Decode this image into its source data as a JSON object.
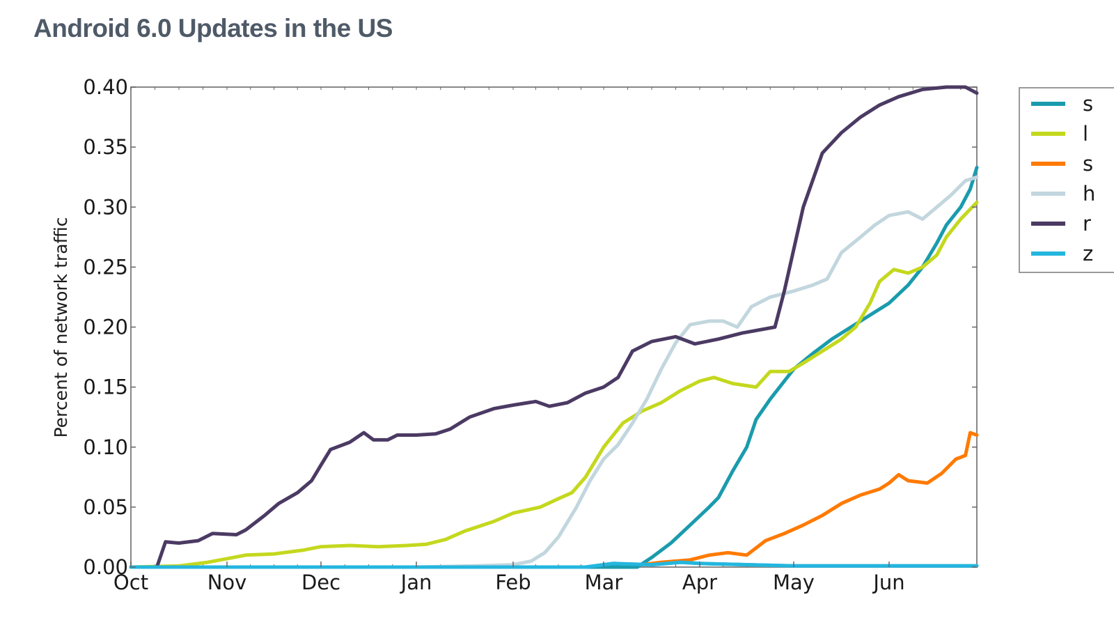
{
  "chart_data": {
    "type": "line",
    "title": "Android 6.0 Updates in the US",
    "xlabel": "",
    "ylabel": "Percent of network traffic",
    "ylim": [
      0.0,
      0.4
    ],
    "xlim_months": [
      0,
      8.92
    ],
    "yticks": [
      "0.00",
      "0.05",
      "0.10",
      "0.15",
      "0.20",
      "0.25",
      "0.30",
      "0.35",
      "0.40"
    ],
    "ytick_values": [
      0.0,
      0.05,
      0.1,
      0.15,
      0.2,
      0.25,
      0.3,
      0.35,
      0.4
    ],
    "xticks": [
      "Oct",
      "Nov",
      "Dec",
      "Jan",
      "Feb",
      "Mar",
      "Apr",
      "May",
      "Jun"
    ],
    "xtick_values": [
      0,
      1,
      2,
      3,
      4,
      5,
      6,
      7,
      8
    ],
    "x_unit": "months since Oct 1",
    "grid": false,
    "legend_position": "right-outside (clipped)",
    "series": [
      {
        "name": "s",
        "color": "#1a9bad",
        "points": [
          [
            0,
            0
          ],
          [
            5.0,
            0
          ],
          [
            5.35,
            0.0
          ],
          [
            5.5,
            0.008
          ],
          [
            5.7,
            0.02
          ],
          [
            5.9,
            0.035
          ],
          [
            6.1,
            0.05
          ],
          [
            6.2,
            0.058
          ],
          [
            6.35,
            0.08
          ],
          [
            6.5,
            0.1
          ],
          [
            6.6,
            0.123
          ],
          [
            6.75,
            0.14
          ],
          [
            6.9,
            0.155
          ],
          [
            7.0,
            0.165
          ],
          [
            7.2,
            0.178
          ],
          [
            7.4,
            0.19
          ],
          [
            7.6,
            0.2
          ],
          [
            7.8,
            0.21
          ],
          [
            8.0,
            0.22
          ],
          [
            8.2,
            0.235
          ],
          [
            8.35,
            0.25
          ],
          [
            8.5,
            0.27
          ],
          [
            8.6,
            0.285
          ],
          [
            8.75,
            0.3
          ],
          [
            8.85,
            0.315
          ],
          [
            8.92,
            0.333
          ]
        ]
      },
      {
        "name": "l",
        "color": "#c4d81e",
        "points": [
          [
            0,
            0
          ],
          [
            0.5,
            0.001
          ],
          [
            0.8,
            0.004
          ],
          [
            1.0,
            0.007
          ],
          [
            1.2,
            0.01
          ],
          [
            1.5,
            0.011
          ],
          [
            1.8,
            0.014
          ],
          [
            2.0,
            0.017
          ],
          [
            2.3,
            0.018
          ],
          [
            2.6,
            0.017
          ],
          [
            2.9,
            0.018
          ],
          [
            3.1,
            0.019
          ],
          [
            3.3,
            0.023
          ],
          [
            3.5,
            0.03
          ],
          [
            3.8,
            0.038
          ],
          [
            4.0,
            0.045
          ],
          [
            4.3,
            0.05
          ],
          [
            4.5,
            0.057
          ],
          [
            4.65,
            0.062
          ],
          [
            4.8,
            0.075
          ],
          [
            5.0,
            0.1
          ],
          [
            5.2,
            0.12
          ],
          [
            5.4,
            0.13
          ],
          [
            5.6,
            0.137
          ],
          [
            5.8,
            0.147
          ],
          [
            6.0,
            0.155
          ],
          [
            6.15,
            0.158
          ],
          [
            6.35,
            0.153
          ],
          [
            6.6,
            0.15
          ],
          [
            6.75,
            0.163
          ],
          [
            6.95,
            0.163
          ],
          [
            7.1,
            0.17
          ],
          [
            7.3,
            0.18
          ],
          [
            7.5,
            0.19
          ],
          [
            7.65,
            0.2
          ],
          [
            7.8,
            0.22
          ],
          [
            7.9,
            0.238
          ],
          [
            8.05,
            0.248
          ],
          [
            8.2,
            0.245
          ],
          [
            8.35,
            0.25
          ],
          [
            8.5,
            0.26
          ],
          [
            8.6,
            0.275
          ],
          [
            8.75,
            0.29
          ],
          [
            8.92,
            0.304
          ]
        ]
      },
      {
        "name": "s",
        "color": "#ff7a00",
        "points": [
          [
            5.4,
            0.002
          ],
          [
            5.6,
            0.004
          ],
          [
            5.9,
            0.006
          ],
          [
            6.1,
            0.01
          ],
          [
            6.3,
            0.012
          ],
          [
            6.5,
            0.01
          ],
          [
            6.7,
            0.022
          ],
          [
            6.9,
            0.028
          ],
          [
            7.1,
            0.035
          ],
          [
            7.3,
            0.043
          ],
          [
            7.5,
            0.053
          ],
          [
            7.7,
            0.06
          ],
          [
            7.9,
            0.065
          ],
          [
            8.0,
            0.07
          ],
          [
            8.1,
            0.077
          ],
          [
            8.2,
            0.072
          ],
          [
            8.4,
            0.07
          ],
          [
            8.55,
            0.078
          ],
          [
            8.7,
            0.09
          ],
          [
            8.8,
            0.093
          ],
          [
            8.85,
            0.112
          ],
          [
            8.92,
            0.11
          ]
        ]
      },
      {
        "name": "h",
        "color": "#c2d6de",
        "points": [
          [
            0,
            0
          ],
          [
            3.0,
            0
          ],
          [
            3.6,
            0.001
          ],
          [
            4.0,
            0.002
          ],
          [
            4.2,
            0.005
          ],
          [
            4.35,
            0.012
          ],
          [
            4.5,
            0.025
          ],
          [
            4.7,
            0.05
          ],
          [
            4.85,
            0.072
          ],
          [
            5.0,
            0.09
          ],
          [
            5.15,
            0.102
          ],
          [
            5.3,
            0.12
          ],
          [
            5.45,
            0.14
          ],
          [
            5.6,
            0.165
          ],
          [
            5.75,
            0.187
          ],
          [
            5.9,
            0.202
          ],
          [
            6.1,
            0.205
          ],
          [
            6.25,
            0.205
          ],
          [
            6.4,
            0.2
          ],
          [
            6.55,
            0.217
          ],
          [
            6.75,
            0.225
          ],
          [
            7.0,
            0.23
          ],
          [
            7.2,
            0.235
          ],
          [
            7.35,
            0.24
          ],
          [
            7.5,
            0.262
          ],
          [
            7.7,
            0.275
          ],
          [
            7.85,
            0.285
          ],
          [
            8.0,
            0.293
          ],
          [
            8.2,
            0.296
          ],
          [
            8.35,
            0.29
          ],
          [
            8.5,
            0.3
          ],
          [
            8.65,
            0.31
          ],
          [
            8.8,
            0.322
          ],
          [
            8.92,
            0.325
          ]
        ]
      },
      {
        "name": "r",
        "color": "#4b3a63",
        "points": [
          [
            0,
            0
          ],
          [
            0.27,
            0
          ],
          [
            0.36,
            0.021
          ],
          [
            0.5,
            0.02
          ],
          [
            0.7,
            0.022
          ],
          [
            0.85,
            0.028
          ],
          [
            1.1,
            0.027
          ],
          [
            1.2,
            0.031
          ],
          [
            1.4,
            0.043
          ],
          [
            1.55,
            0.053
          ],
          [
            1.75,
            0.062
          ],
          [
            1.9,
            0.072
          ],
          [
            2.0,
            0.085
          ],
          [
            2.1,
            0.098
          ],
          [
            2.3,
            0.104
          ],
          [
            2.45,
            0.112
          ],
          [
            2.55,
            0.106
          ],
          [
            2.7,
            0.106
          ],
          [
            2.8,
            0.11
          ],
          [
            3.0,
            0.11
          ],
          [
            3.2,
            0.111
          ],
          [
            3.35,
            0.115
          ],
          [
            3.55,
            0.125
          ],
          [
            3.8,
            0.132
          ],
          [
            4.0,
            0.135
          ],
          [
            4.25,
            0.138
          ],
          [
            4.4,
            0.134
          ],
          [
            4.6,
            0.137
          ],
          [
            4.8,
            0.145
          ],
          [
            5.0,
            0.15
          ],
          [
            5.15,
            0.158
          ],
          [
            5.3,
            0.18
          ],
          [
            5.5,
            0.188
          ],
          [
            5.75,
            0.192
          ],
          [
            5.95,
            0.186
          ],
          [
            6.2,
            0.19
          ],
          [
            6.45,
            0.195
          ],
          [
            6.8,
            0.2
          ],
          [
            6.9,
            0.23
          ],
          [
            7.1,
            0.3
          ],
          [
            7.3,
            0.345
          ],
          [
            7.5,
            0.362
          ],
          [
            7.7,
            0.375
          ],
          [
            7.9,
            0.385
          ],
          [
            8.1,
            0.392
          ],
          [
            8.35,
            0.398
          ],
          [
            8.6,
            0.4
          ],
          [
            8.8,
            0.4
          ],
          [
            8.92,
            0.395
          ]
        ]
      },
      {
        "name": "z",
        "color": "#24b6de",
        "points": [
          [
            0,
            0
          ],
          [
            4.8,
            0
          ],
          [
            5.1,
            0.003
          ],
          [
            5.5,
            0.002
          ],
          [
            5.8,
            0.004
          ],
          [
            6.0,
            0.003
          ],
          [
            7.0,
            0.001
          ],
          [
            8.0,
            0.001
          ],
          [
            8.92,
            0.001
          ]
        ]
      }
    ]
  }
}
